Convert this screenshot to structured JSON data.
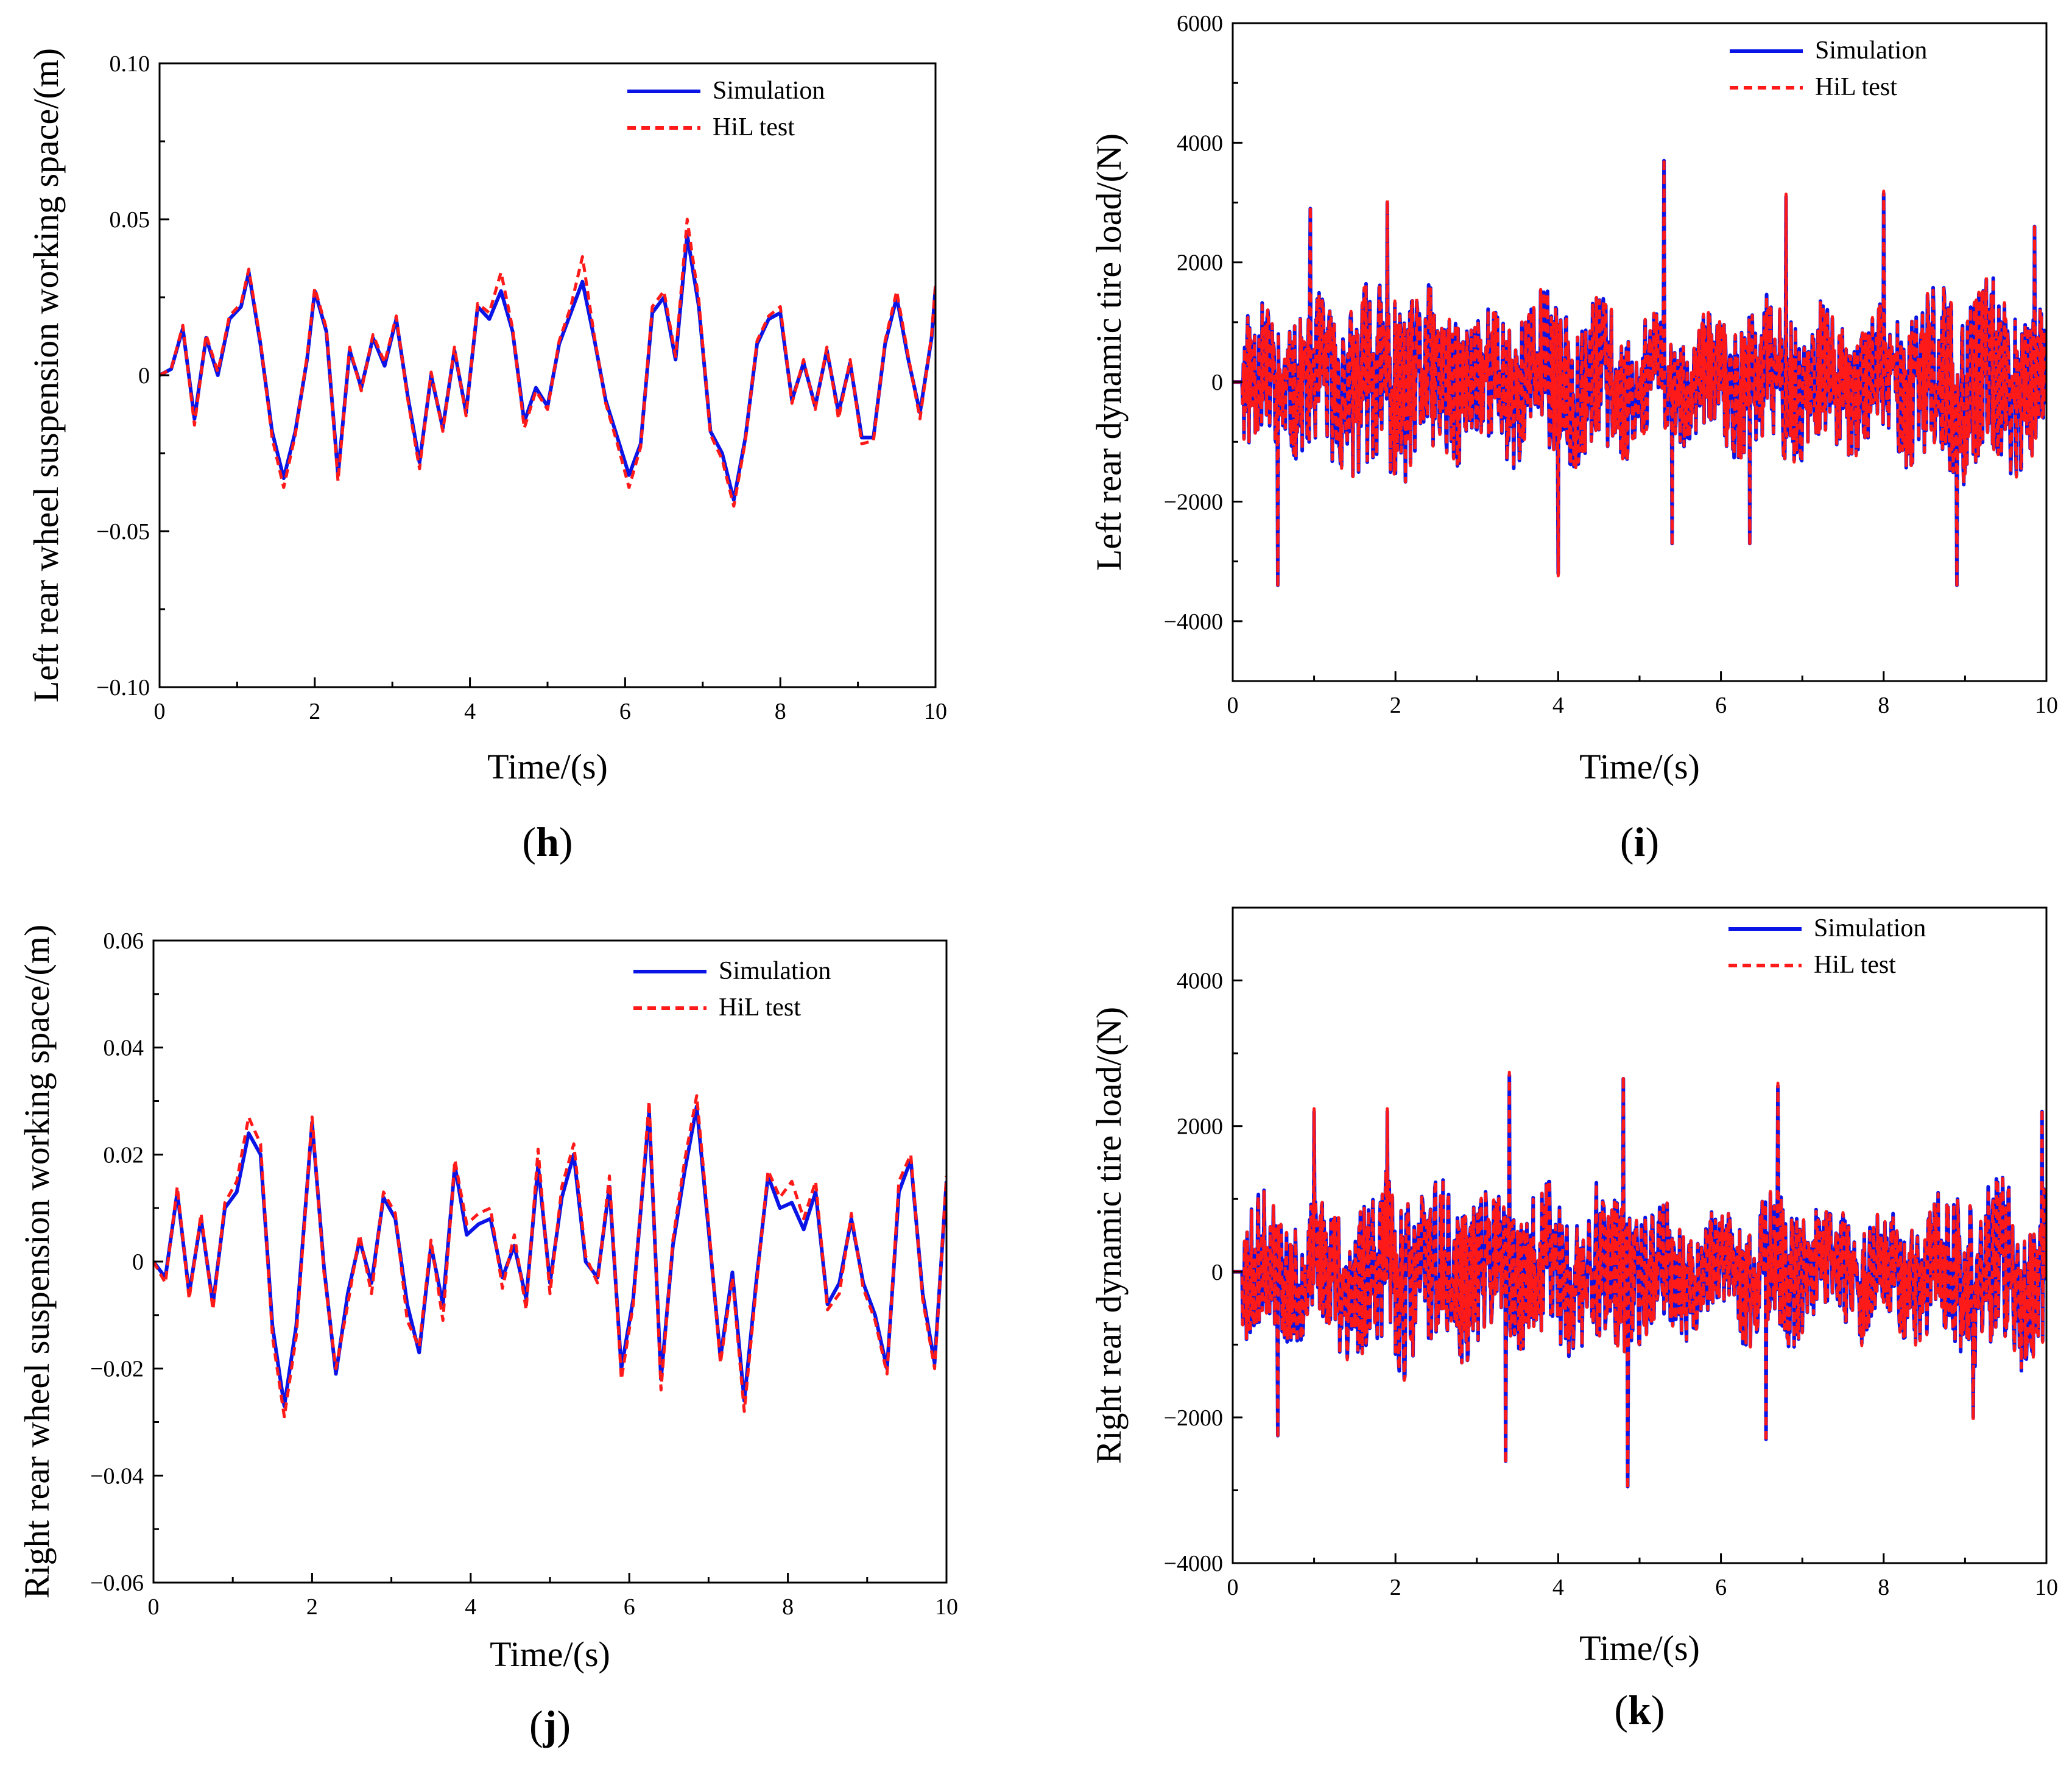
{
  "figure": {
    "colors": {
      "simulation": "#0a14e6",
      "hil": "#ff1a1a",
      "axis": "#000000"
    }
  },
  "chart_data": [
    {
      "id": "h",
      "type": "line",
      "panel_label": "h",
      "xlabel": "Time/(s)",
      "ylabel": "Left rear wheel suspension working space/(m)",
      "xlim": [
        0,
        10
      ],
      "ylim": [
        -0.1,
        0.1
      ],
      "xticks": [
        0,
        2,
        4,
        6,
        8,
        10
      ],
      "xtick_labels": [
        "0",
        "2",
        "4",
        "6",
        "8",
        "10"
      ],
      "yticks": [
        -0.1,
        -0.05,
        0,
        0.05,
        0.1
      ],
      "ytick_labels": [
        "−0.10",
        "−0.05",
        "0",
        "0.05",
        "0.10"
      ],
      "legend": [
        "Simulation",
        "HiL test"
      ],
      "legend_position": "top-right",
      "series": [
        {
          "name": "Simulation",
          "style": "solid",
          "x": [
            0,
            0.15,
            0.3,
            0.45,
            0.6,
            0.75,
            0.9,
            1.05,
            1.15,
            1.3,
            1.45,
            1.6,
            1.75,
            1.9,
            2.0,
            2.15,
            2.3,
            2.45,
            2.6,
            2.75,
            2.9,
            3.05,
            3.2,
            3.35,
            3.5,
            3.65,
            3.8,
            3.95,
            4.1,
            4.25,
            4.4,
            4.55,
            4.7,
            4.85,
            5.0,
            5.15,
            5.3,
            5.45,
            5.6,
            5.75,
            5.9,
            6.05,
            6.2,
            6.35,
            6.5,
            6.65,
            6.8,
            6.95,
            7.1,
            7.25,
            7.4,
            7.55,
            7.7,
            7.85,
            8.0,
            8.15,
            8.3,
            8.45,
            8.6,
            8.75,
            8.9,
            9.05,
            9.2,
            9.35,
            9.5,
            9.65,
            9.8,
            9.95,
            10
          ],
          "y": [
            0,
            0.002,
            0.015,
            -0.014,
            0.012,
            0.0,
            0.018,
            0.022,
            0.033,
            0.01,
            -0.018,
            -0.033,
            -0.018,
            0.005,
            0.027,
            0.014,
            -0.032,
            0.008,
            -0.004,
            0.012,
            0.003,
            0.018,
            -0.007,
            -0.028,
            0.0,
            -0.017,
            0.008,
            -0.012,
            0.022,
            0.018,
            0.027,
            0.014,
            -0.015,
            -0.004,
            -0.01,
            0.01,
            0.02,
            0.03,
            0.012,
            -0.008,
            -0.02,
            -0.032,
            -0.022,
            0.02,
            0.025,
            0.005,
            0.045,
            0.022,
            -0.018,
            -0.025,
            -0.04,
            -0.02,
            0.01,
            0.018,
            0.02,
            -0.008,
            0.004,
            -0.01,
            0.008,
            -0.012,
            0.004,
            -0.02,
            -0.02,
            0.01,
            0.025,
            0.005,
            -0.012,
            0.012,
            0.028
          ]
        },
        {
          "name": "HiL test",
          "style": "dashed",
          "x": [
            0,
            0.15,
            0.3,
            0.45,
            0.6,
            0.75,
            0.9,
            1.05,
            1.15,
            1.3,
            1.45,
            1.6,
            1.75,
            1.9,
            2.0,
            2.15,
            2.3,
            2.45,
            2.6,
            2.75,
            2.9,
            3.05,
            3.2,
            3.35,
            3.5,
            3.65,
            3.8,
            3.95,
            4.1,
            4.25,
            4.4,
            4.55,
            4.7,
            4.85,
            5.0,
            5.15,
            5.3,
            5.45,
            5.6,
            5.75,
            5.9,
            6.05,
            6.2,
            6.35,
            6.5,
            6.65,
            6.8,
            6.95,
            7.1,
            7.25,
            7.4,
            7.55,
            7.7,
            7.85,
            8.0,
            8.15,
            8.3,
            8.45,
            8.6,
            8.75,
            8.9,
            9.05,
            9.2,
            9.35,
            9.5,
            9.65,
            9.8,
            9.95,
            10
          ],
          "y": [
            0,
            0.002,
            0.016,
            -0.016,
            0.013,
            0.001,
            0.019,
            0.023,
            0.034,
            0.011,
            -0.02,
            -0.036,
            -0.019,
            0.006,
            0.028,
            0.015,
            -0.034,
            0.009,
            -0.005,
            0.013,
            0.004,
            0.019,
            -0.008,
            -0.03,
            0.001,
            -0.018,
            0.009,
            -0.013,
            0.023,
            0.02,
            0.033,
            0.015,
            -0.017,
            -0.005,
            -0.011,
            0.011,
            0.022,
            0.038,
            0.013,
            -0.009,
            -0.022,
            -0.036,
            -0.023,
            0.022,
            0.027,
            0.006,
            0.05,
            0.024,
            -0.019,
            -0.027,
            -0.042,
            -0.021,
            0.011,
            0.019,
            0.022,
            -0.009,
            0.005,
            -0.011,
            0.009,
            -0.014,
            0.005,
            -0.022,
            -0.021,
            0.011,
            0.027,
            0.006,
            -0.014,
            0.013,
            0.029
          ]
        }
      ]
    },
    {
      "id": "i",
      "type": "line",
      "panel_label": "i",
      "xlabel": "Time/(s)",
      "ylabel": "Left rear dynamic tire load/(N)",
      "xlim": [
        0,
        10
      ],
      "ylim": [
        -5000,
        6000
      ],
      "xticks": [
        0,
        2,
        4,
        6,
        8,
        10
      ],
      "xtick_labels": [
        "0",
        "2",
        "4",
        "6",
        "8",
        "10"
      ],
      "yticks": [
        -4000,
        -2000,
        0,
        2000,
        4000,
        6000
      ],
      "ytick_labels": [
        "−4000",
        "−2000",
        "0",
        "2000",
        "4000",
        "6000"
      ],
      "legend": [
        "Simulation",
        "HiL test"
      ],
      "legend_position": "top-right",
      "series": [
        {
          "name": "Simulation",
          "style": "solid",
          "x": [],
          "y": []
        },
        {
          "name": "HiL test",
          "style": "dashed",
          "x": [],
          "y": []
        }
      ],
      "signal": {
        "kind": "dense",
        "amp": 1300,
        "seed": 11,
        "peaks_hi": [
          [
            0.95,
            2900
          ],
          [
            1.9,
            3000
          ],
          [
            5.3,
            3700
          ],
          [
            6.8,
            3100
          ],
          [
            8.0,
            3150
          ],
          [
            9.85,
            2600
          ]
        ],
        "peaks_lo": [
          [
            0.55,
            -3400
          ],
          [
            4.0,
            -3200
          ],
          [
            5.4,
            -2700
          ],
          [
            6.35,
            -2700
          ],
          [
            8.9,
            -3400
          ]
        ]
      }
    },
    {
      "id": "j",
      "type": "line",
      "panel_label": "j",
      "xlabel": "Time/(s)",
      "ylabel": "Right rear wheel suspension working space/(m)",
      "xlim": [
        0,
        10
      ],
      "ylim": [
        -0.06,
        0.06
      ],
      "xticks": [
        0,
        2,
        4,
        6,
        8,
        10
      ],
      "xtick_labels": [
        "0",
        "2",
        "4",
        "6",
        "8",
        "10"
      ],
      "yticks": [
        -0.06,
        -0.04,
        -0.02,
        0,
        0.02,
        0.04,
        0.06
      ],
      "ytick_labels": [
        "−0.06",
        "−0.04",
        "−0.02",
        "0",
        "0.02",
        "0.04",
        "0.06"
      ],
      "legend": [
        "Simulation",
        "HiL test"
      ],
      "legend_position": "top-right",
      "series": [
        {
          "name": "Simulation",
          "style": "solid",
          "x": [
            0,
            0.15,
            0.3,
            0.45,
            0.6,
            0.75,
            0.9,
            1.05,
            1.2,
            1.35,
            1.5,
            1.65,
            1.8,
            2.0,
            2.15,
            2.3,
            2.45,
            2.6,
            2.75,
            2.9,
            3.05,
            3.2,
            3.35,
            3.5,
            3.65,
            3.8,
            3.95,
            4.1,
            4.25,
            4.4,
            4.55,
            4.7,
            4.85,
            5.0,
            5.15,
            5.3,
            5.45,
            5.6,
            5.75,
            5.9,
            6.05,
            6.25,
            6.4,
            6.55,
            6.7,
            6.85,
            7.0,
            7.15,
            7.3,
            7.45,
            7.6,
            7.75,
            7.9,
            8.05,
            8.2,
            8.35,
            8.5,
            8.65,
            8.8,
            8.95,
            9.1,
            9.25,
            9.4,
            9.55,
            9.7,
            9.85,
            10
          ],
          "y": [
            0,
            -0.003,
            0.013,
            -0.006,
            0.008,
            -0.008,
            0.01,
            0.013,
            0.024,
            0.02,
            -0.012,
            -0.027,
            -0.012,
            0.026,
            -0.001,
            -0.021,
            -0.006,
            0.004,
            -0.004,
            0.012,
            0.008,
            -0.008,
            -0.017,
            0.003,
            -0.008,
            0.018,
            0.005,
            0.007,
            0.008,
            -0.003,
            0.003,
            -0.007,
            0.018,
            -0.004,
            0.012,
            0.02,
            0.0,
            -0.003,
            0.014,
            -0.02,
            -0.007,
            0.028,
            -0.022,
            0.003,
            0.017,
            0.029,
            0.006,
            -0.018,
            -0.002,
            -0.026,
            -0.004,
            0.016,
            0.01,
            0.011,
            0.006,
            0.013,
            -0.008,
            -0.004,
            0.008,
            -0.004,
            -0.01,
            -0.02,
            0.013,
            0.019,
            -0.006,
            -0.019,
            0.015
          ]
        },
        {
          "name": "HiL test",
          "style": "dashed",
          "x": [
            0,
            0.15,
            0.3,
            0.45,
            0.6,
            0.75,
            0.9,
            1.05,
            1.2,
            1.35,
            1.5,
            1.65,
            1.8,
            2.0,
            2.15,
            2.3,
            2.45,
            2.6,
            2.75,
            2.9,
            3.05,
            3.2,
            3.35,
            3.5,
            3.65,
            3.8,
            3.95,
            4.1,
            4.25,
            4.4,
            4.55,
            4.7,
            4.85,
            5.0,
            5.15,
            5.3,
            5.45,
            5.6,
            5.75,
            5.9,
            6.05,
            6.25,
            6.4,
            6.55,
            6.7,
            6.85,
            7.0,
            7.15,
            7.3,
            7.45,
            7.6,
            7.75,
            7.9,
            8.05,
            8.2,
            8.35,
            8.5,
            8.65,
            8.8,
            8.95,
            9.1,
            9.25,
            9.4,
            9.55,
            9.7,
            9.85,
            10
          ],
          "y": [
            0,
            -0.004,
            0.014,
            -0.007,
            0.009,
            -0.009,
            0.011,
            0.015,
            0.027,
            0.022,
            -0.014,
            -0.029,
            -0.014,
            0.027,
            -0.002,
            -0.02,
            -0.008,
            0.005,
            -0.006,
            0.013,
            0.009,
            -0.011,
            -0.016,
            0.004,
            -0.011,
            0.019,
            0.007,
            0.009,
            0.01,
            -0.005,
            0.005,
            -0.009,
            0.021,
            -0.006,
            0.014,
            0.022,
            0.001,
            -0.004,
            0.016,
            -0.022,
            -0.008,
            0.03,
            -0.024,
            0.004,
            0.019,
            0.031,
            0.007,
            -0.019,
            -0.003,
            -0.028,
            -0.005,
            0.017,
            0.012,
            0.015,
            0.008,
            0.015,
            -0.009,
            -0.006,
            0.009,
            -0.005,
            -0.011,
            -0.021,
            0.015,
            0.02,
            -0.007,
            -0.02,
            0.016
          ]
        }
      ]
    },
    {
      "id": "k",
      "type": "line",
      "panel_label": "k",
      "xlabel": "Time/(s)",
      "ylabel": "Right rear dynamic tire load/(N)",
      "xlim": [
        0,
        10
      ],
      "ylim": [
        -4000,
        5000
      ],
      "xticks": [
        0,
        2,
        4,
        6,
        8,
        10
      ],
      "xtick_labels": [
        "0",
        "2",
        "4",
        "6",
        "8",
        "10"
      ],
      "yticks": [
        -4000,
        -2000,
        0,
        2000,
        4000
      ],
      "ytick_labels": [
        "−4000",
        "−2000",
        "0",
        "2000",
        "4000"
      ],
      "legend": [
        "Simulation",
        "HiL test"
      ],
      "legend_position": "top-right",
      "series": [
        {
          "name": "Simulation",
          "style": "solid",
          "x": [],
          "y": []
        },
        {
          "name": "HiL test",
          "style": "dashed",
          "x": [],
          "y": []
        }
      ],
      "signal": {
        "kind": "dense",
        "amp": 1050,
        "seed": 23,
        "peaks_hi": [
          [
            1.0,
            2200
          ],
          [
            1.9,
            2200
          ],
          [
            3.4,
            2700
          ],
          [
            4.8,
            2650
          ],
          [
            6.7,
            2550
          ],
          [
            9.95,
            2200
          ]
        ],
        "peaks_lo": [
          [
            0.55,
            -2250
          ],
          [
            3.35,
            -2600
          ],
          [
            4.85,
            -2950
          ],
          [
            6.55,
            -2300
          ],
          [
            9.1,
            -2000
          ]
        ]
      }
    }
  ]
}
